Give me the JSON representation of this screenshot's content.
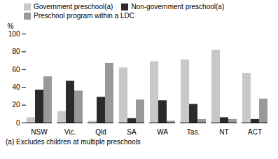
{
  "chart_data": {
    "type": "bar",
    "categories": [
      "NSW",
      "Vic.",
      "Qld",
      "SA",
      "WA",
      "Tas.",
      "NT",
      "ACT"
    ],
    "series": [
      {
        "name": "Government preschool(a)",
        "color": "#c8c8c8",
        "values": [
          6,
          13,
          2,
          62,
          69,
          71,
          82,
          56
        ]
      },
      {
        "name": "Non-government preschool(a)",
        "color": "#2b2b2b",
        "values": [
          37,
          47,
          29,
          5,
          25,
          21,
          6,
          4
        ]
      },
      {
        "name": "Preschool program within a LDC",
        "color": "#999999",
        "values": [
          52,
          36,
          67,
          26,
          2,
          4,
          4,
          27
        ]
      }
    ],
    "ylabel": "%",
    "caption": "(a) Excludes children at multiple preschools",
    "ylim": [
      0,
      100
    ],
    "yticks": [
      0,
      20,
      40,
      60,
      80,
      100
    ],
    "grid": false,
    "legend": "upper left"
  }
}
